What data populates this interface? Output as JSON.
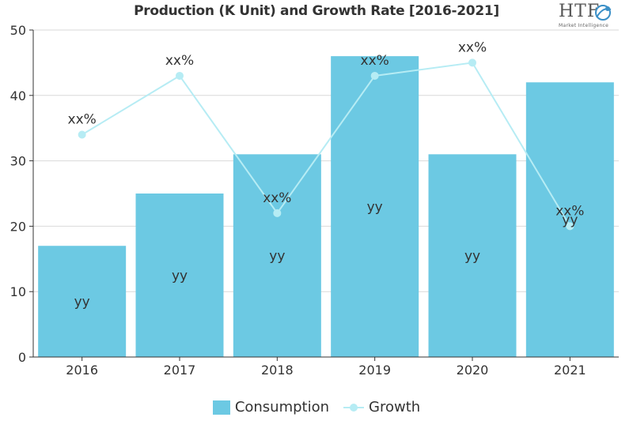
{
  "chart_data": {
    "type": "bar",
    "title": "Production (K Unit) and Growth Rate [2016-2021]",
    "categories": [
      "2016",
      "2017",
      "2018",
      "2019",
      "2020",
      "2021"
    ],
    "ylim": [
      0,
      50
    ],
    "yticks": [
      0,
      10,
      20,
      30,
      40,
      50
    ],
    "grid": true,
    "legend_position": "bottom-center",
    "series": [
      {
        "name": "Consumption",
        "type": "bar",
        "color": "#6cc9e3",
        "values": [
          17,
          25,
          31,
          46,
          31,
          42
        ],
        "labels": [
          "yy",
          "yy",
          "yy",
          "yy",
          "yy",
          "yy"
        ]
      },
      {
        "name": "Growth",
        "type": "line",
        "color": "#b6ecf4",
        "values": [
          34,
          43,
          22,
          43,
          45,
          20
        ],
        "labels": [
          "xx%",
          "xx%",
          "xx%",
          "xx%",
          "xx%",
          "xx%"
        ]
      }
    ]
  },
  "logo": {
    "text": "HTF",
    "subtext": "Market Intelligence"
  }
}
